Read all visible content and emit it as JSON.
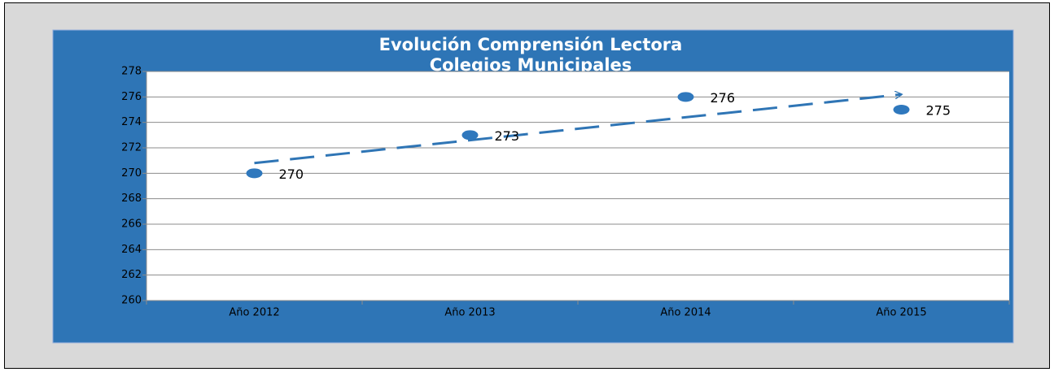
{
  "chart_data": {
    "type": "line",
    "markers_only": true,
    "trendline": "linear",
    "title": [
      "Evolución Comprensión Lectora",
      "Colegios Municipales"
    ],
    "categories": [
      "Año 2012",
      "Año 2013",
      "Año 2014",
      "Año 2015"
    ],
    "values": [
      270,
      273,
      276,
      275
    ],
    "color": "#2f78bd",
    "trend_color": "#2f75b5",
    "ylim": [
      260,
      278
    ],
    "yticks": [
      260,
      262,
      264,
      266,
      268,
      270,
      272,
      274,
      276,
      278
    ],
    "grid": true
  }
}
